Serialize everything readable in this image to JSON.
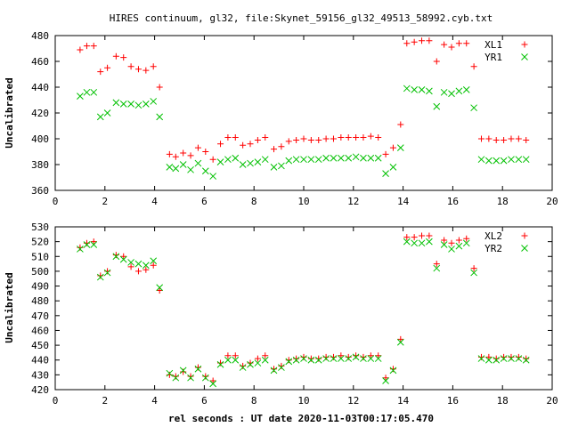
{
  "title": "HIRES continuum, gl32, file:Skynet_59156_gl32_49513_58992.cyb.txt",
  "xlabel": "rel seconds : UT date 2020-11-03T00:17:05.470",
  "chart_data": [
    {
      "type": "scatter",
      "ylabel": "Uncalibrated",
      "xlim": [
        0,
        20
      ],
      "ylim": [
        360,
        480
      ],
      "xticks": [
        0,
        2,
        4,
        6,
        8,
        10,
        12,
        14,
        16,
        18,
        20
      ],
      "yticks": [
        360,
        380,
        400,
        420,
        440,
        460,
        480
      ],
      "legend": "top-right",
      "series": [
        {
          "name": "XL1",
          "marker": "plus",
          "color": "#ff0000",
          "x": [
            1.0,
            1.27,
            1.55,
            1.82,
            2.1,
            2.45,
            2.75,
            3.05,
            3.35,
            3.65,
            3.95,
            4.2,
            4.6,
            4.85,
            5.15,
            5.45,
            5.75,
            6.05,
            6.35,
            6.65,
            6.95,
            7.25,
            7.55,
            7.85,
            8.15,
            8.45,
            8.8,
            9.1,
            9.4,
            9.7,
            10.0,
            10.3,
            10.6,
            10.9,
            11.2,
            11.5,
            11.8,
            12.1,
            12.4,
            12.7,
            13.0,
            13.3,
            13.6,
            13.9,
            14.15,
            14.45,
            14.75,
            15.05,
            15.35,
            15.65,
            15.95,
            16.25,
            16.55,
            16.85,
            17.15,
            17.45,
            17.75,
            18.05,
            18.35,
            18.65,
            18.95
          ],
          "y": [
            469,
            472,
            472,
            452,
            455,
            464,
            463,
            456,
            454,
            453,
            456,
            440,
            388,
            386,
            389,
            387,
            393,
            390,
            384,
            396,
            401,
            401,
            395,
            396,
            399,
            401,
            392,
            394,
            398,
            399,
            400,
            399,
            399,
            400,
            400,
            401,
            401,
            401,
            401,
            402,
            401,
            388,
            393,
            411,
            474,
            475,
            476,
            476,
            460,
            473,
            471,
            474,
            474,
            456,
            400,
            400,
            399,
            399,
            400,
            400,
            399
          ]
        },
        {
          "name": "YR1",
          "marker": "cross",
          "color": "#00c000",
          "x": [
            1.0,
            1.27,
            1.55,
            1.82,
            2.1,
            2.45,
            2.75,
            3.05,
            3.35,
            3.65,
            3.95,
            4.2,
            4.6,
            4.85,
            5.15,
            5.45,
            5.75,
            6.05,
            6.35,
            6.65,
            6.95,
            7.25,
            7.55,
            7.85,
            8.15,
            8.45,
            8.8,
            9.1,
            9.4,
            9.7,
            10.0,
            10.3,
            10.6,
            10.9,
            11.2,
            11.5,
            11.8,
            12.1,
            12.4,
            12.7,
            13.0,
            13.3,
            13.6,
            13.9,
            14.15,
            14.45,
            14.75,
            15.05,
            15.35,
            15.65,
            15.95,
            16.25,
            16.55,
            16.85,
            17.15,
            17.45,
            17.75,
            18.05,
            18.35,
            18.65,
            18.95
          ],
          "y": [
            433,
            436,
            436,
            417,
            420,
            428,
            427,
            427,
            426,
            427,
            429,
            417,
            378,
            377,
            380,
            376,
            381,
            375,
            371,
            382,
            384,
            385,
            380,
            381,
            382,
            384,
            378,
            379,
            383,
            384,
            384,
            384,
            384,
            385,
            385,
            385,
            385,
            386,
            385,
            385,
            385,
            373,
            378,
            393,
            439,
            438,
            438,
            437,
            425,
            436,
            435,
            437,
            438,
            424,
            384,
            383,
            383,
            383,
            384,
            384,
            384
          ]
        }
      ]
    },
    {
      "type": "scatter",
      "ylabel": "Uncalibrated",
      "xlim": [
        0,
        20
      ],
      "ylim": [
        420,
        530
      ],
      "xticks": [
        0,
        2,
        4,
        6,
        8,
        10,
        12,
        14,
        16,
        18,
        20
      ],
      "yticks": [
        420,
        430,
        440,
        450,
        460,
        470,
        480,
        490,
        500,
        510,
        520,
        530
      ],
      "legend": "top-right",
      "series": [
        {
          "name": "XL2",
          "marker": "plus",
          "color": "#ff0000",
          "x": [
            1.0,
            1.27,
            1.55,
            1.82,
            2.1,
            2.45,
            2.75,
            3.05,
            3.35,
            3.65,
            3.95,
            4.2,
            4.6,
            4.85,
            5.15,
            5.45,
            5.75,
            6.05,
            6.35,
            6.65,
            6.95,
            7.25,
            7.55,
            7.85,
            8.15,
            8.45,
            8.8,
            9.1,
            9.4,
            9.7,
            10.0,
            10.3,
            10.6,
            10.9,
            11.2,
            11.5,
            11.8,
            12.1,
            12.4,
            12.7,
            13.0,
            13.3,
            13.6,
            13.9,
            14.15,
            14.45,
            14.75,
            15.05,
            15.35,
            15.65,
            15.95,
            16.25,
            16.55,
            16.85,
            17.15,
            17.45,
            17.75,
            18.05,
            18.35,
            18.65,
            18.95
          ],
          "y": [
            516,
            519,
            520,
            497,
            500,
            511,
            510,
            503,
            500,
            501,
            504,
            487,
            430,
            429,
            432,
            429,
            435,
            429,
            426,
            438,
            443,
            443,
            436,
            438,
            441,
            443,
            434,
            436,
            440,
            441,
            442,
            441,
            441,
            442,
            442,
            443,
            442,
            443,
            442,
            443,
            443,
            428,
            434,
            454,
            523,
            523,
            524,
            524,
            505,
            521,
            519,
            521,
            522,
            502,
            442,
            442,
            441,
            442,
            442,
            442,
            441
          ]
        },
        {
          "name": "YR2",
          "marker": "cross",
          "color": "#00c000",
          "x": [
            1.0,
            1.27,
            1.55,
            1.82,
            2.1,
            2.45,
            2.75,
            3.05,
            3.35,
            3.65,
            3.95,
            4.2,
            4.6,
            4.85,
            5.15,
            5.45,
            5.75,
            6.05,
            6.35,
            6.65,
            6.95,
            7.25,
            7.55,
            7.85,
            8.15,
            8.45,
            8.8,
            9.1,
            9.4,
            9.7,
            10.0,
            10.3,
            10.6,
            10.9,
            11.2,
            11.5,
            11.8,
            12.1,
            12.4,
            12.7,
            13.0,
            13.3,
            13.6,
            13.9,
            14.15,
            14.45,
            14.75,
            15.05,
            15.35,
            15.65,
            15.95,
            16.25,
            16.55,
            16.85,
            17.15,
            17.45,
            17.75,
            18.05,
            18.35,
            18.65,
            18.95
          ],
          "y": [
            515,
            518,
            518,
            496,
            499,
            510,
            508,
            506,
            505,
            504,
            507,
            489,
            431,
            428,
            433,
            428,
            434,
            428,
            424,
            437,
            440,
            440,
            435,
            437,
            438,
            440,
            433,
            435,
            439,
            440,
            441,
            440,
            440,
            441,
            441,
            441,
            441,
            442,
            441,
            441,
            441,
            426,
            433,
            452,
            520,
            519,
            519,
            520,
            502,
            518,
            515,
            517,
            519,
            499,
            441,
            440,
            440,
            441,
            441,
            441,
            440
          ]
        }
      ]
    }
  ]
}
